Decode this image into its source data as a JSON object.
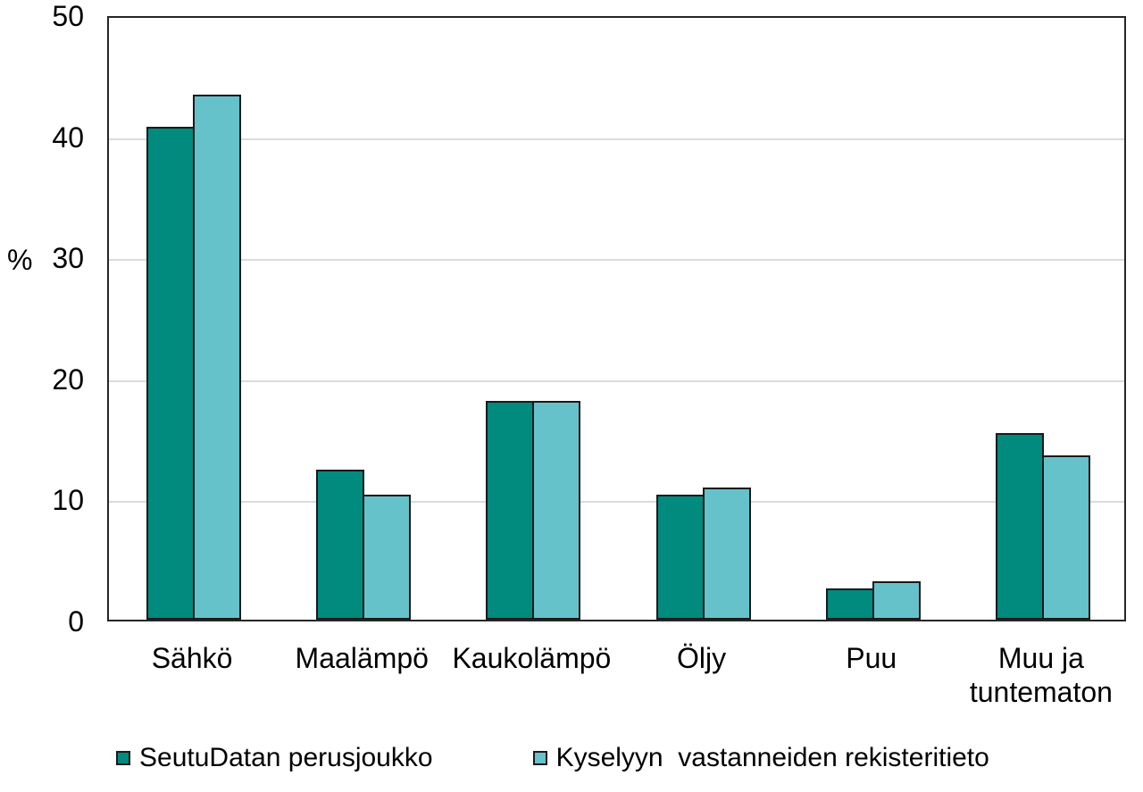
{
  "chart_data": {
    "type": "bar",
    "categories": [
      "Sähkö",
      "Maalämpö",
      "Kaukolämpö",
      "Öljy",
      "Puu",
      "Muu ja\ntuntematon"
    ],
    "series": [
      {
        "name": "SeutuDatan perusjoukko",
        "color": "#018A7E",
        "values": [
          40.7,
          12.4,
          18.1,
          10.3,
          2.6,
          15.4
        ]
      },
      {
        "name": "Kyselyyn  vastanneiden rekisteritieto",
        "color": "#65C2CB",
        "values": [
          43.4,
          10.3,
          18.1,
          10.9,
          3.2,
          13.6
        ]
      }
    ],
    "title": "",
    "xlabel": "",
    "ylabel": "%",
    "ylim": [
      0,
      50
    ],
    "yticks": [
      0,
      10,
      20,
      30,
      40,
      50
    ],
    "grid": true,
    "legend_position": "bottom",
    "bar_outline_color": "#1A1A1A",
    "gridline_color": "#DBDBDB",
    "plot_border_color": "#262626"
  }
}
